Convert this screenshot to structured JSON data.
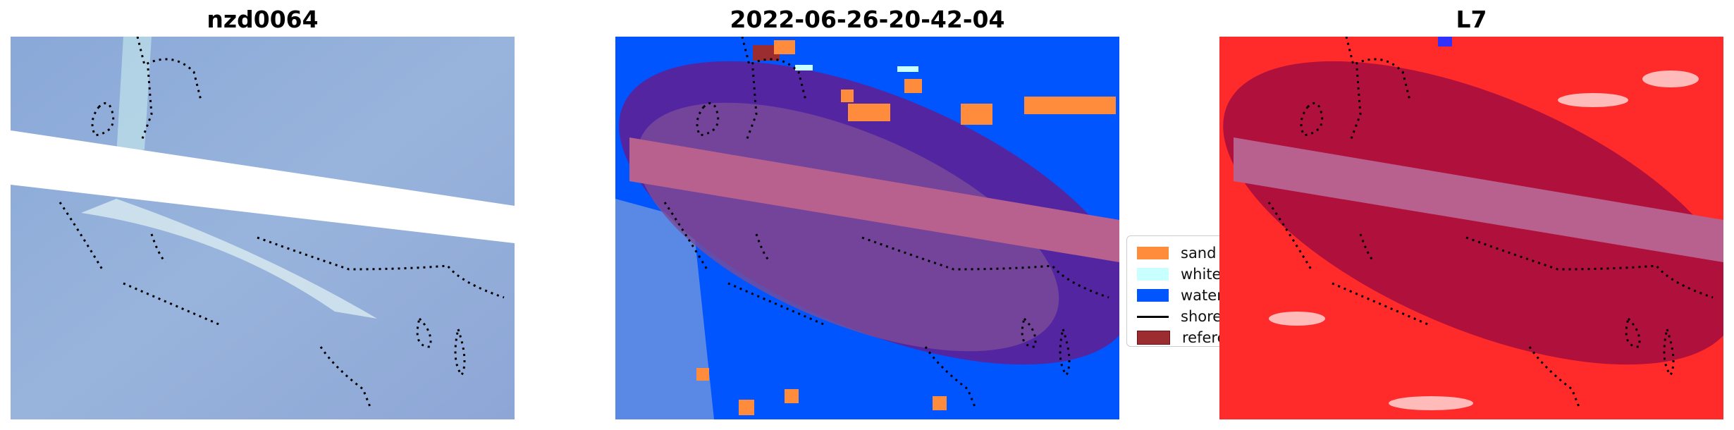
{
  "panels": [
    {
      "title": "nzd0064"
    },
    {
      "title": "2022-06-26-20-42-04"
    },
    {
      "title": "L7"
    }
  ],
  "legend": {
    "items": [
      {
        "label": "sand",
        "color": "#ff8c3c"
      },
      {
        "label": "whitewater",
        "color": "#c8ffff"
      },
      {
        "label": "water",
        "color": "#0055ff"
      },
      {
        "label": "shoreline",
        "color": "#000000",
        "type": "line"
      },
      {
        "label": "reference region",
        "color": "#9b2d30"
      }
    ]
  },
  "colors": {
    "pink_band": "#b8608e",
    "blob_blue_bg": "#5425a0",
    "blob_red_bg": "#b0103c"
  }
}
